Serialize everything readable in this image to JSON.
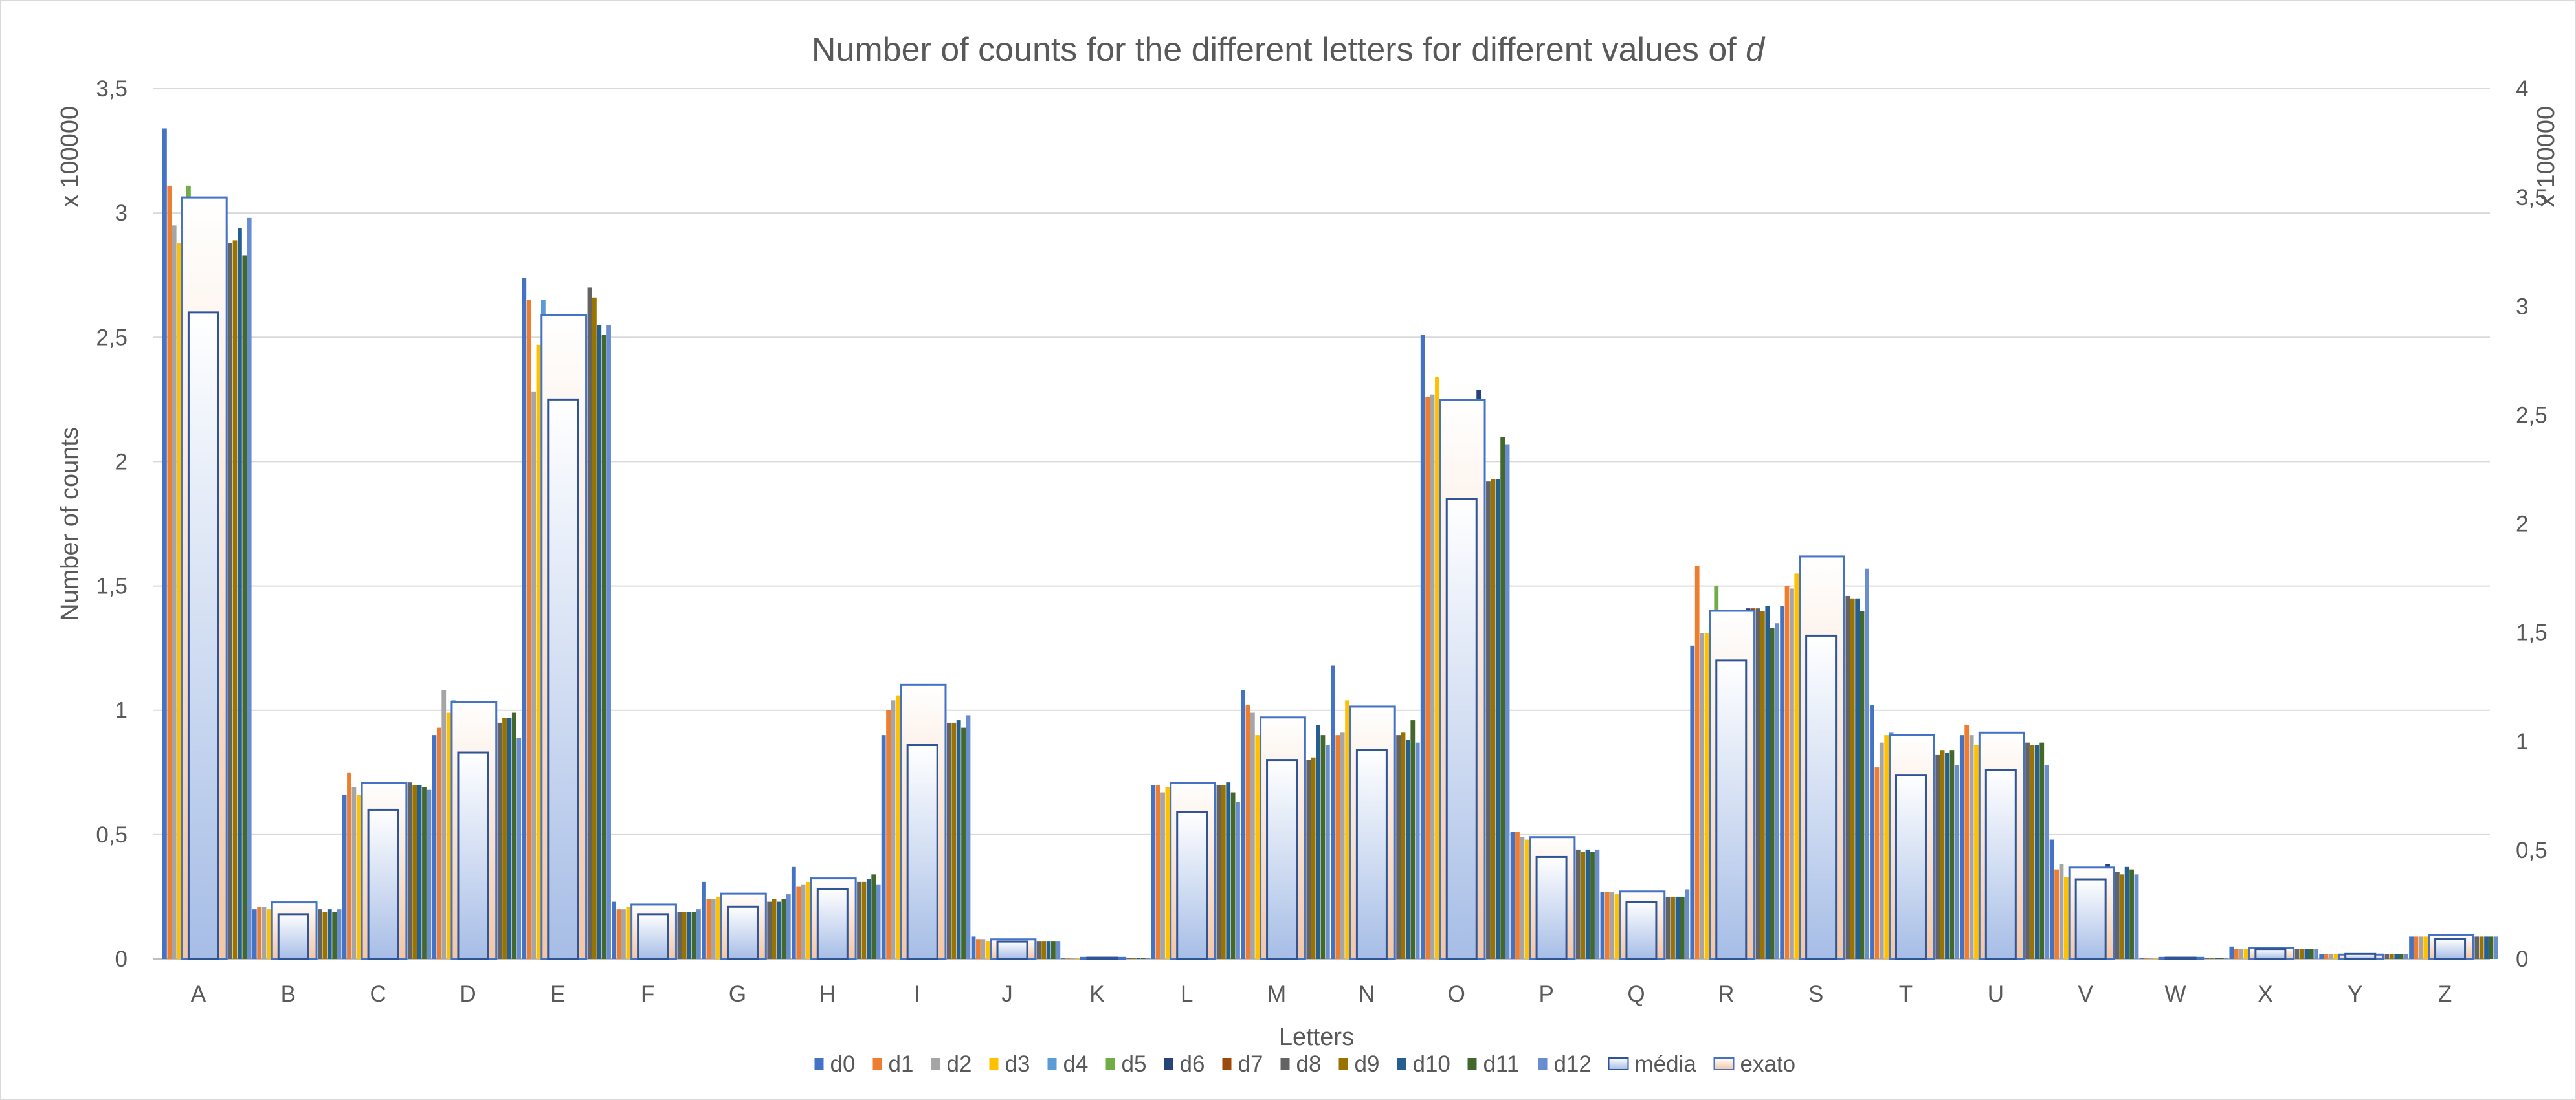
{
  "chart_data": {
    "type": "bar",
    "title": "Number of counts for the different letters for different values of d",
    "title_main": "Number of counts for the different letters for different values of ",
    "title_italic": "d",
    "xlabel": "Letters",
    "ylabel": "Number of counts",
    "y_multiplier_left": "x 100000",
    "y_multiplier_right": "x 100000",
    "ylim": [
      0,
      3.5
    ],
    "y2lim": [
      0,
      4
    ],
    "yticks": [
      "0",
      "0,5",
      "1",
      "1,5",
      "2",
      "2,5",
      "3",
      "3,5"
    ],
    "y2ticks": [
      "0",
      "0,5",
      "1",
      "1,5",
      "2",
      "2,5",
      "3",
      "3,5",
      "4"
    ],
    "grid": true,
    "legend_position": "bottom",
    "categories": [
      "A",
      "B",
      "C",
      "D",
      "E",
      "F",
      "G",
      "H",
      "I",
      "J",
      "K",
      "L",
      "M",
      "N",
      "O",
      "P",
      "Q",
      "R",
      "S",
      "T",
      "U",
      "V",
      "W",
      "X",
      "Y",
      "Z"
    ],
    "series": [
      {
        "name": "d0",
        "color": "#4472c4",
        "axis": "left",
        "values": [
          3.34,
          0.2,
          0.66,
          0.9,
          2.74,
          0.23,
          0.31,
          0.37,
          0.9,
          0.09,
          0.005,
          0.7,
          1.08,
          1.18,
          2.51,
          0.51,
          0.27,
          1.26,
          1.42,
          1.02,
          0.9,
          0.48,
          0.005,
          0.05,
          0.02,
          0.09
        ]
      },
      {
        "name": "d1",
        "color": "#ed7d31",
        "axis": "left",
        "values": [
          3.11,
          0.21,
          0.75,
          0.93,
          2.65,
          0.2,
          0.24,
          0.29,
          1.0,
          0.08,
          0.005,
          0.7,
          1.02,
          0.9,
          2.26,
          0.51,
          0.27,
          1.58,
          1.5,
          0.77,
          0.94,
          0.36,
          0.005,
          0.04,
          0.02,
          0.09
        ]
      },
      {
        "name": "d2",
        "color": "#a5a5a5",
        "axis": "left",
        "values": [
          2.95,
          0.21,
          0.69,
          1.08,
          2.28,
          0.2,
          0.24,
          0.3,
          1.04,
          0.08,
          0.005,
          0.67,
          0.99,
          0.91,
          2.27,
          0.49,
          0.27,
          1.31,
          1.49,
          0.87,
          0.9,
          0.38,
          0.005,
          0.04,
          0.02,
          0.09
        ]
      },
      {
        "name": "d3",
        "color": "#ffc000",
        "axis": "left",
        "values": [
          2.88,
          0.2,
          0.66,
          0.99,
          2.47,
          0.21,
          0.25,
          0.31,
          1.06,
          0.07,
          0.005,
          0.69,
          0.9,
          1.04,
          2.34,
          0.48,
          0.26,
          1.31,
          1.55,
          0.9,
          0.86,
          0.33,
          0.005,
          0.04,
          0.02,
          0.09
        ]
      },
      {
        "name": "d4",
        "color": "#5b9bd5",
        "axis": "left",
        "values": [
          2.92,
          0.21,
          0.67,
          1.04,
          2.65,
          0.2,
          0.25,
          0.32,
          1.02,
          0.08,
          0.005,
          0.63,
          0.81,
          0.9,
          1.86,
          0.48,
          0.25,
          1.31,
          1.46,
          0.91,
          0.88,
          0.35,
          0.005,
          0.04,
          0.02,
          0.09
        ]
      },
      {
        "name": "d5",
        "color": "#70ad47",
        "axis": "left",
        "values": [
          3.11,
          0.2,
          0.65,
          0.94,
          2.51,
          0.2,
          0.24,
          0.32,
          0.96,
          0.08,
          0.005,
          0.65,
          0.82,
          0.98,
          1.96,
          0.46,
          0.27,
          1.5,
          1.44,
          0.8,
          0.89,
          0.33,
          0.005,
          0.04,
          0.02,
          0.09
        ]
      },
      {
        "name": "d6",
        "color": "#264478",
        "axis": "left",
        "values": [
          2.87,
          0.2,
          0.71,
          0.9,
          2.59,
          0.19,
          0.25,
          0.3,
          0.98,
          0.08,
          0.005,
          0.67,
          0.84,
          0.92,
          2.29,
          0.44,
          0.25,
          1.41,
          1.49,
          0.84,
          0.88,
          0.38,
          0.005,
          0.04,
          0.02,
          0.09
        ]
      },
      {
        "name": "d7",
        "color": "#9e480e",
        "axis": "left",
        "values": [
          2.95,
          0.2,
          0.7,
          0.97,
          2.59,
          0.18,
          0.24,
          0.32,
          0.98,
          0.08,
          0.005,
          0.71,
          0.8,
          0.9,
          1.93,
          0.45,
          0.25,
          1.41,
          1.48,
          0.83,
          0.86,
          0.36,
          0.005,
          0.04,
          0.02,
          0.09
        ]
      },
      {
        "name": "d8",
        "color": "#636363",
        "axis": "left",
        "values": [
          2.88,
          0.2,
          0.71,
          0.95,
          2.7,
          0.19,
          0.23,
          0.31,
          0.95,
          0.07,
          0.005,
          0.7,
          0.8,
          0.9,
          1.92,
          0.44,
          0.25,
          1.41,
          1.46,
          0.82,
          0.87,
          0.35,
          0.005,
          0.04,
          0.02,
          0.09
        ]
      },
      {
        "name": "d9",
        "color": "#997300",
        "axis": "left",
        "values": [
          2.89,
          0.19,
          0.7,
          0.97,
          2.66,
          0.19,
          0.24,
          0.31,
          0.95,
          0.07,
          0.005,
          0.7,
          0.81,
          0.91,
          1.93,
          0.43,
          0.25,
          1.4,
          1.45,
          0.84,
          0.86,
          0.34,
          0.005,
          0.04,
          0.02,
          0.09
        ]
      },
      {
        "name": "d10",
        "color": "#255e91",
        "axis": "left",
        "values": [
          2.94,
          0.2,
          0.7,
          0.97,
          2.55,
          0.19,
          0.23,
          0.32,
          0.96,
          0.07,
          0.005,
          0.71,
          0.94,
          0.88,
          1.93,
          0.44,
          0.25,
          1.42,
          1.45,
          0.83,
          0.86,
          0.37,
          0.005,
          0.04,
          0.02,
          0.09
        ]
      },
      {
        "name": "d11",
        "color": "#43682b",
        "axis": "left",
        "values": [
          2.83,
          0.19,
          0.69,
          0.99,
          2.51,
          0.19,
          0.24,
          0.34,
          0.93,
          0.07,
          0.005,
          0.67,
          0.9,
          0.96,
          2.1,
          0.43,
          0.25,
          1.33,
          1.4,
          0.84,
          0.87,
          0.36,
          0.005,
          0.04,
          0.02,
          0.09
        ]
      },
      {
        "name": "d12",
        "color": "#698ed0",
        "axis": "left",
        "values": [
          2.98,
          0.2,
          0.68,
          0.89,
          2.55,
          0.2,
          0.26,
          0.3,
          0.98,
          0.07,
          0.005,
          0.63,
          0.86,
          0.87,
          2.07,
          0.44,
          0.28,
          1.35,
          1.57,
          0.78,
          0.78,
          0.34,
          0.005,
          0.04,
          0.02,
          0.09
        ]
      },
      {
        "name": "média",
        "color": "#4472c4",
        "axis": "left",
        "style": "gradient-blue",
        "values": [
          2.6,
          0.18,
          0.6,
          0.83,
          2.25,
          0.18,
          0.21,
          0.28,
          0.86,
          0.07,
          0.005,
          0.59,
          0.8,
          0.84,
          1.85,
          0.41,
          0.23,
          1.2,
          1.3,
          0.74,
          0.76,
          0.32,
          0.005,
          0.04,
          0.02,
          0.08
        ]
      },
      {
        "name": "exato",
        "color": "#4472c4",
        "axis": "right",
        "style": "gradient-peach",
        "values": [
          3.5,
          0.26,
          0.81,
          1.18,
          2.96,
          0.25,
          0.3,
          0.37,
          1.26,
          0.09,
          0.005,
          0.81,
          1.11,
          1.16,
          2.57,
          0.56,
          0.31,
          1.6,
          1.85,
          1.03,
          1.04,
          0.42,
          0.005,
          0.05,
          0.02,
          0.11
        ]
      }
    ]
  }
}
